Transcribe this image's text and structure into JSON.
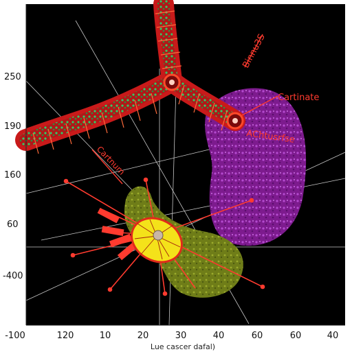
{
  "diagram": {
    "x_ticks": [
      "-100",
      "120",
      "10",
      "20",
      "30",
      "40",
      "60",
      "60",
      "40"
    ],
    "y_ticks": [
      "250",
      "190",
      "160",
      "60",
      "-400"
    ],
    "x_axis_label": "Lue cascer dafal)",
    "annotations": {
      "top_right": "Binnu3S",
      "right_upper": "Cartinate",
      "right_middle": "AChtusrfse",
      "left_middle": "Cartnum"
    }
  },
  "colors": {
    "background": "#000000",
    "vessel_red": "#c81a1a",
    "vessel_green": "#1f8a3a",
    "purple_blob": "#8a1f9a",
    "olive_blob": "#7c8a1e",
    "yellow_cell": "#f4e21a",
    "annotation_red": "#ff3b2f",
    "grid_line": "#bfbfbf"
  }
}
